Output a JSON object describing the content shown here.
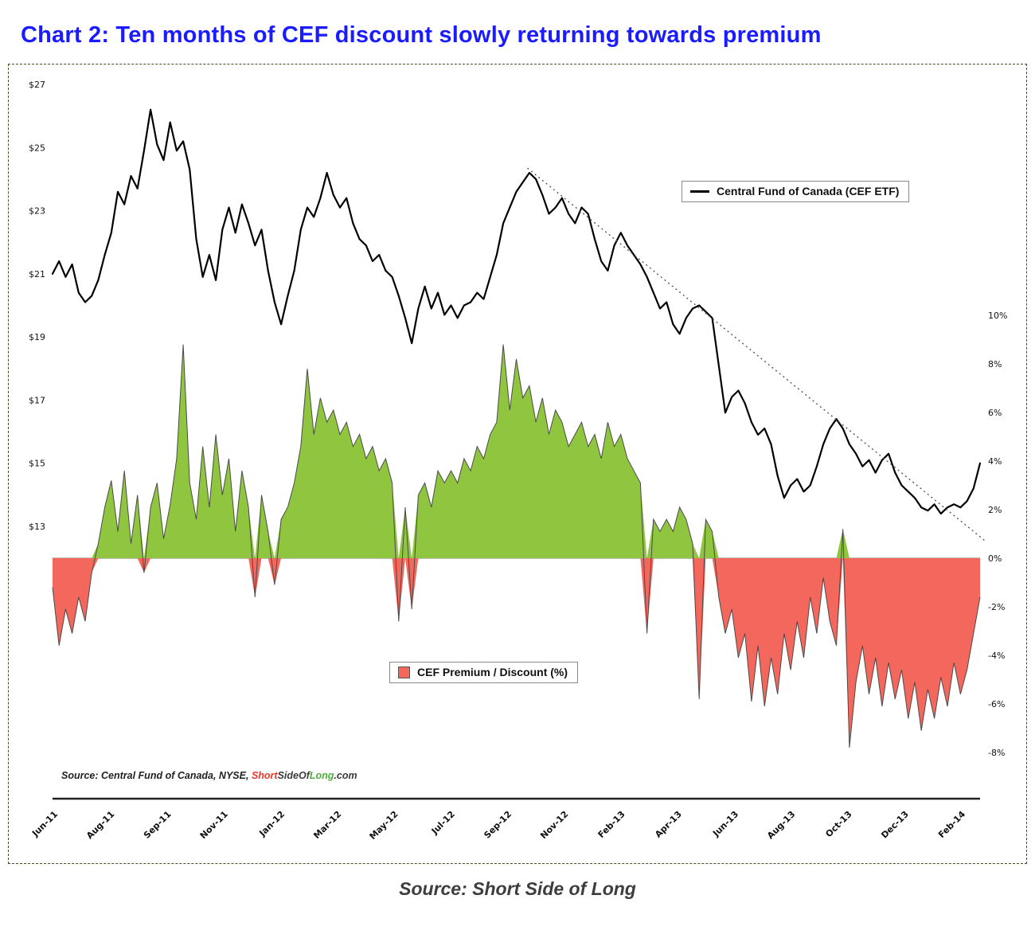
{
  "page": {
    "title": "Chart 2: Ten months of CEF discount slowly returning towards premium",
    "title_color": "#1b1bff",
    "caption": "Source: Short Side of Long"
  },
  "legends": {
    "price": "Central Fund of Canada (CEF ETF)",
    "premium": "CEF Premium / Discount (%)"
  },
  "source_line": {
    "prefix": "Source: Central Fund of Canada, NYSE, ",
    "brand_parts": [
      {
        "text": "Short",
        "color": "#e8392a"
      },
      {
        "text": "SideOf",
        "color": "#3a3a3a"
      },
      {
        "text": "Long",
        "color": "#4fae3b"
      },
      {
        "text": ".com",
        "color": "#3a3a3a"
      }
    ]
  },
  "chart_data": {
    "type": "line+area",
    "title": "Ten months of CEF discount slowly returning towards premium",
    "x_tick_labels": [
      "Jun-11",
      "Aug-11",
      "Sep-11",
      "Nov-11",
      "Jan-12",
      "Mar-12",
      "May-12",
      "Jul-12",
      "Sep-12",
      "Nov-12",
      "Feb-13",
      "Apr-13",
      "Jun-13",
      "Aug-13",
      "Oct-13",
      "Dec-13",
      "Feb-14"
    ],
    "left_axis": {
      "unit": "$",
      "ticks": [
        27,
        25,
        23,
        21,
        19,
        17,
        15,
        13
      ],
      "range": [
        13,
        27
      ]
    },
    "right_axis": {
      "unit": "%",
      "ticks": [
        10,
        8,
        6,
        4,
        2,
        0,
        -2,
        -4,
        -6,
        -8
      ],
      "range": [
        -8,
        10
      ]
    },
    "grid": "zero-line-only",
    "legend_position": "inside",
    "series": [
      {
        "name": "Central Fund of Canada (CEF ETF)",
        "type": "line",
        "axis": "left",
        "color": "#000000",
        "values": [
          21.0,
          21.4,
          20.9,
          21.3,
          20.4,
          20.1,
          20.3,
          20.8,
          21.6,
          22.3,
          23.6,
          23.2,
          24.1,
          23.7,
          24.9,
          26.2,
          25.1,
          24.6,
          25.8,
          24.9,
          25.2,
          24.3,
          22.1,
          20.9,
          21.6,
          20.8,
          22.4,
          23.1,
          22.3,
          23.2,
          22.6,
          21.9,
          22.4,
          21.1,
          20.1,
          19.4,
          20.3,
          21.1,
          22.4,
          23.1,
          22.8,
          23.4,
          24.2,
          23.5,
          23.1,
          23.4,
          22.6,
          22.1,
          21.9,
          21.4,
          21.6,
          21.1,
          20.9,
          20.3,
          19.6,
          18.8,
          19.9,
          20.6,
          19.9,
          20.4,
          19.7,
          20.0,
          19.6,
          20.0,
          20.1,
          20.4,
          20.2,
          20.9,
          21.6,
          22.6,
          23.1,
          23.6,
          23.9,
          24.2,
          24.0,
          23.5,
          22.9,
          23.1,
          23.4,
          22.9,
          22.6,
          23.1,
          22.9,
          22.1,
          21.4,
          21.1,
          21.9,
          22.3,
          21.9,
          21.6,
          21.3,
          20.9,
          20.4,
          19.9,
          20.1,
          19.4,
          19.1,
          19.6,
          19.9,
          20.0,
          19.8,
          19.6,
          18.1,
          16.6,
          17.1,
          17.3,
          16.9,
          16.3,
          15.9,
          16.1,
          15.6,
          14.6,
          13.9,
          14.3,
          14.5,
          14.1,
          14.3,
          14.9,
          15.6,
          16.1,
          16.4,
          16.1,
          15.6,
          15.3,
          14.9,
          15.1,
          14.7,
          15.1,
          15.3,
          14.7,
          14.3,
          14.1,
          13.9,
          13.6,
          13.5,
          13.7,
          13.4,
          13.6,
          13.7,
          13.6,
          13.8,
          14.2,
          15.0
        ]
      },
      {
        "name": "CEF Premium / Discount (%)",
        "type": "area",
        "axis": "right",
        "positive_color": "#90c53f",
        "negative_color": "#f4675c",
        "outline_color": "#4a4a4a",
        "values": [
          -1.2,
          -3.6,
          -2.1,
          -3.1,
          -1.6,
          -2.6,
          -0.6,
          0.6,
          2.1,
          3.2,
          1.1,
          3.6,
          0.6,
          2.6,
          -0.6,
          2.1,
          3.1,
          0.8,
          2.2,
          4.1,
          8.8,
          3.1,
          1.6,
          4.6,
          2.1,
          5.1,
          2.6,
          4.1,
          1.1,
          3.6,
          2.1,
          -1.6,
          2.6,
          1.1,
          -1.1,
          1.6,
          2.1,
          3.1,
          4.6,
          7.8,
          5.1,
          6.6,
          5.6,
          6.1,
          5.1,
          5.6,
          4.6,
          5.1,
          4.1,
          4.6,
          3.6,
          4.1,
          3.1,
          -2.6,
          2.1,
          -2.1,
          2.6,
          3.1,
          2.1,
          3.6,
          3.1,
          3.6,
          3.1,
          4.1,
          3.6,
          4.6,
          4.1,
          5.1,
          5.6,
          8.8,
          6.1,
          8.2,
          6.6,
          7.1,
          5.6,
          6.6,
          5.1,
          6.1,
          5.6,
          4.6,
          5.1,
          5.6,
          4.6,
          5.1,
          4.1,
          5.6,
          4.6,
          5.1,
          4.1,
          3.6,
          3.1,
          -3.1,
          1.6,
          1.1,
          1.6,
          1.1,
          2.1,
          1.6,
          0.6,
          -5.8,
          1.6,
          1.1,
          -1.6,
          -3.1,
          -2.1,
          -4.1,
          -3.1,
          -5.9,
          -3.6,
          -6.1,
          -4.1,
          -5.6,
          -3.1,
          -4.6,
          -2.6,
          -4.1,
          -1.6,
          -3.1,
          -0.8,
          -2.6,
          -3.6,
          1.2,
          -7.8,
          -5.1,
          -3.6,
          -5.6,
          -4.1,
          -6.1,
          -4.3,
          -5.8,
          -4.6,
          -6.6,
          -5.1,
          -7.1,
          -5.4,
          -6.6,
          -4.9,
          -6.1,
          -4.3,
          -5.6,
          -4.6,
          -3.1,
          -1.6
        ]
      }
    ],
    "trendline": {
      "description": "dotted downtrend resistance line on price axis",
      "start_frac": 0.512,
      "start_price": 24.35,
      "end_frac": 1.005,
      "end_price": 12.55,
      "color": "#555555",
      "style": "dotted"
    }
  }
}
